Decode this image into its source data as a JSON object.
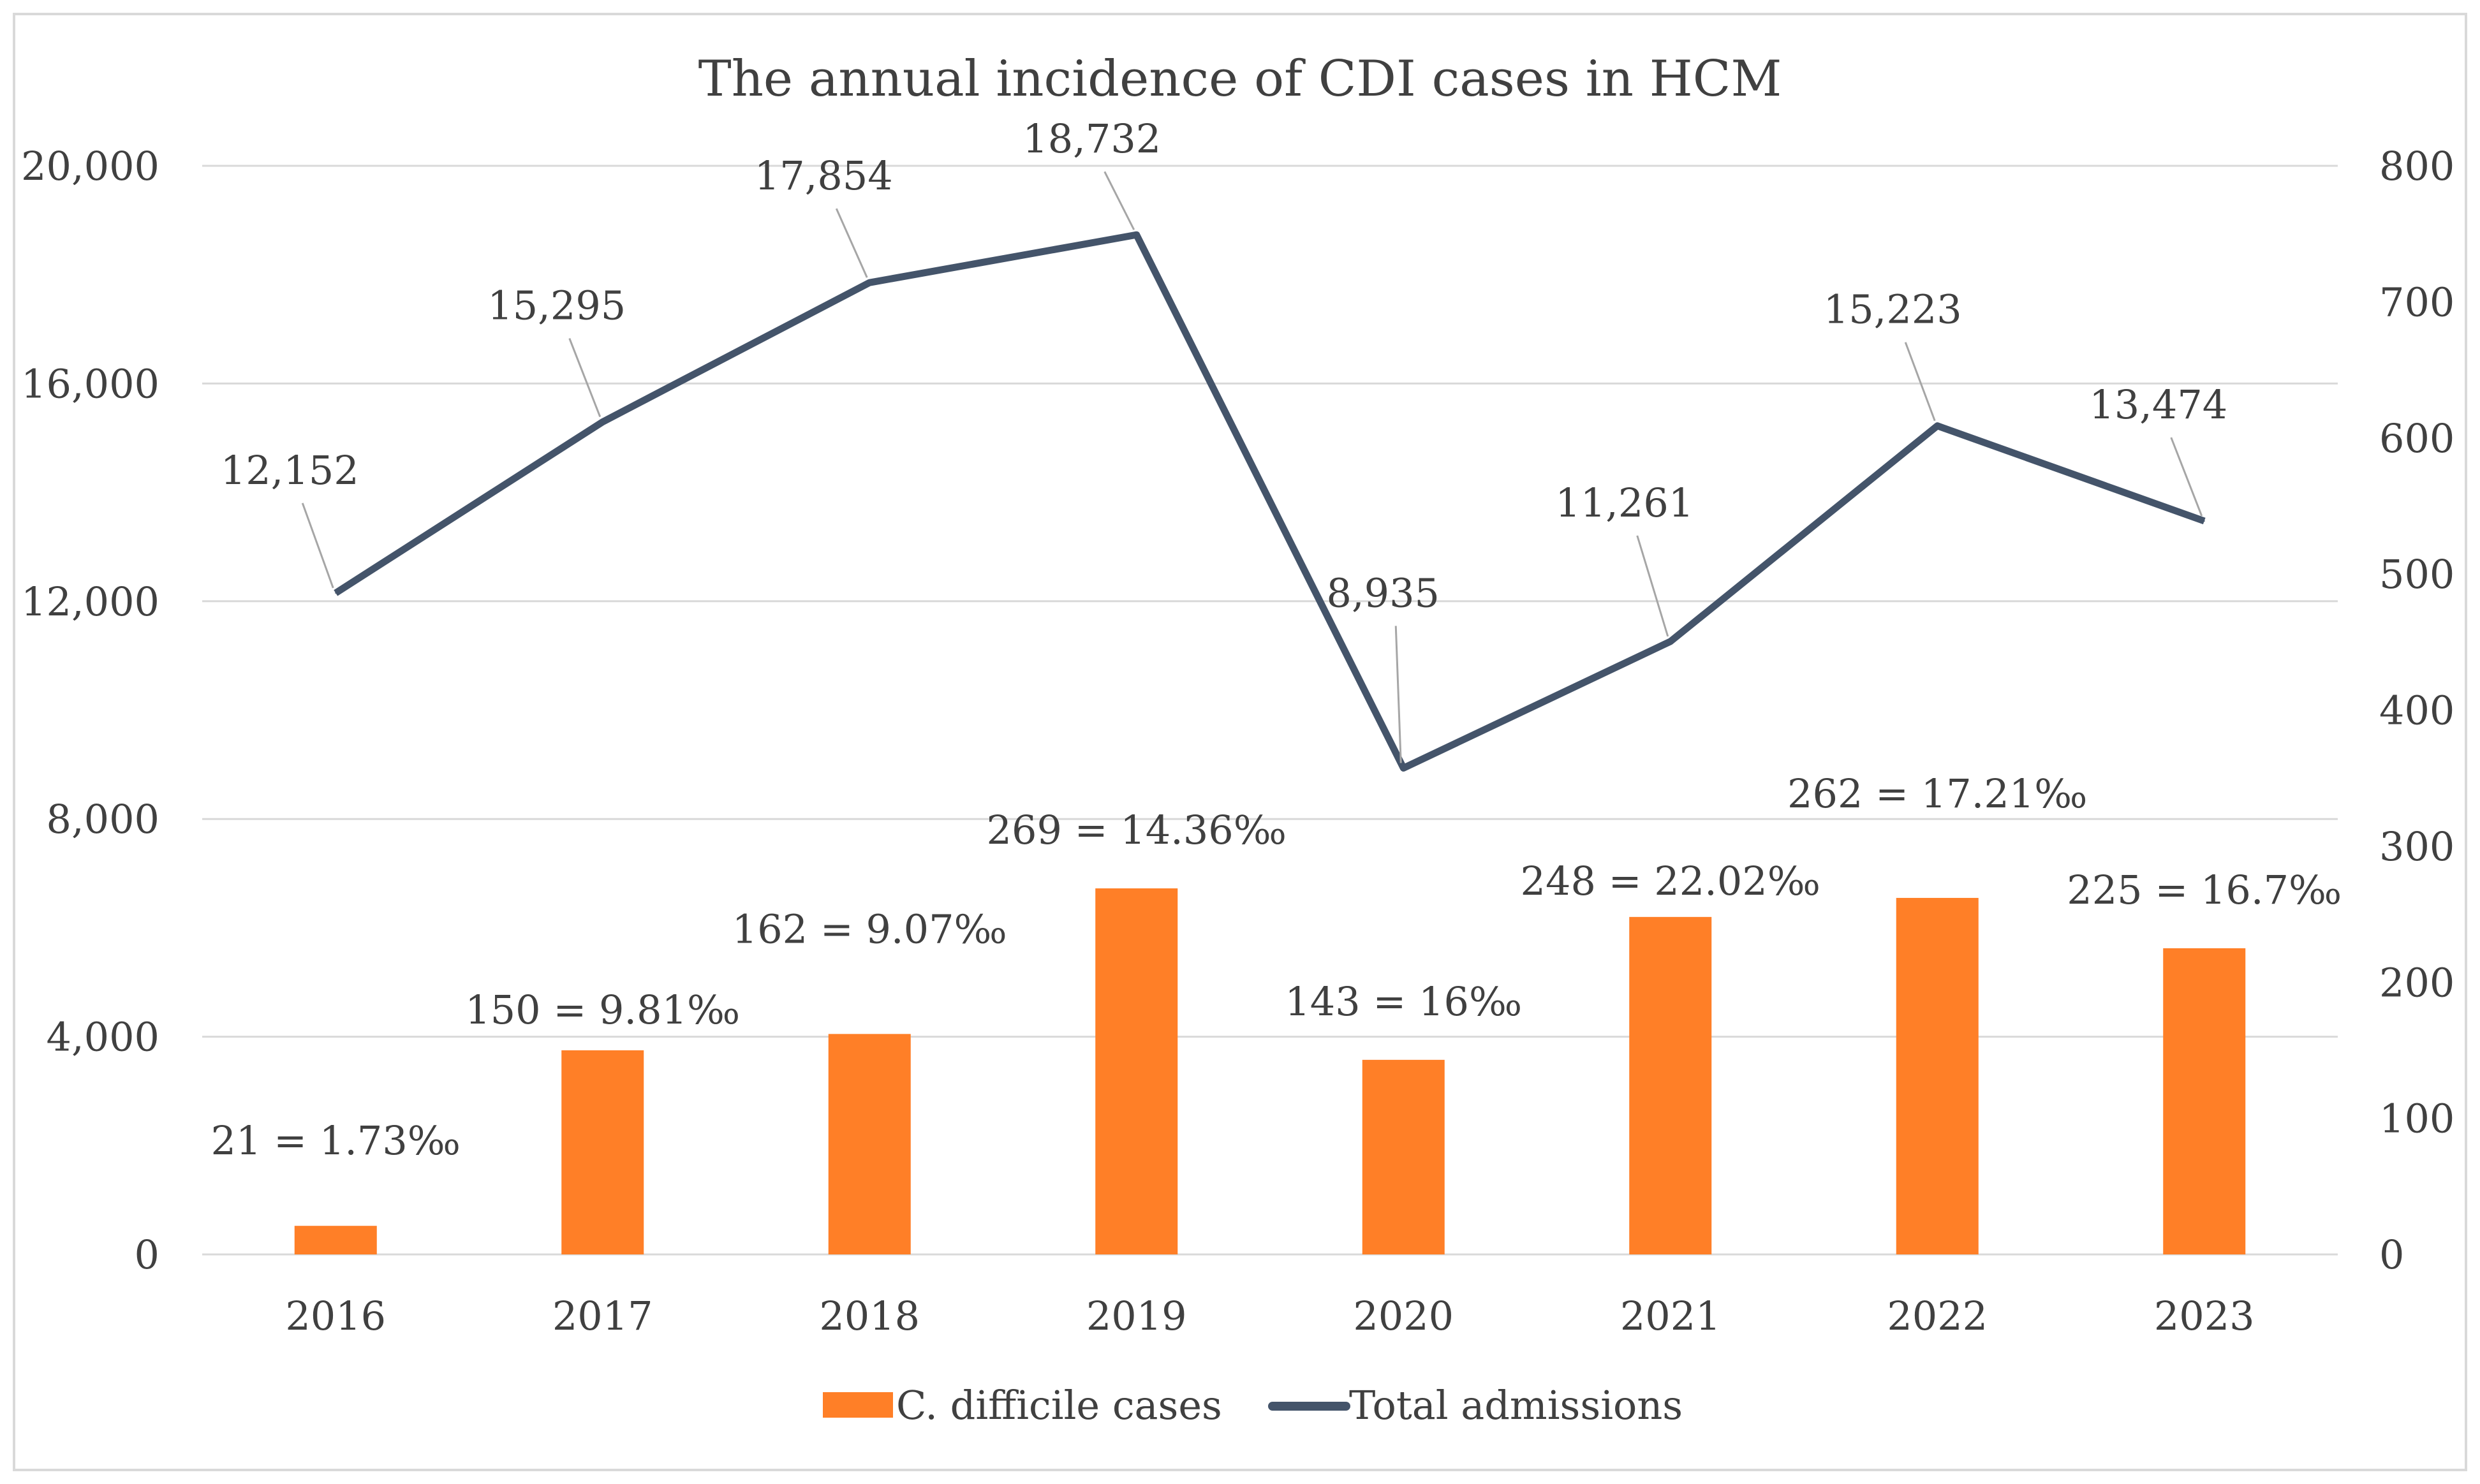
{
  "chart_data": {
    "type": "bar+line",
    "title": "The annual incidence  of CDI cases in HCM",
    "categories": [
      "2016",
      "2017",
      "2018",
      "2019",
      "2020",
      "2021",
      "2022",
      "2023"
    ],
    "series": [
      {
        "name": "C. difficile cases",
        "type": "bar",
        "axis": "right",
        "color": "#FF7F27",
        "values": [
          21,
          150,
          162,
          269,
          143,
          248,
          262,
          225
        ],
        "labels": [
          "21 = 1.73‰",
          "150 = 9.81‰",
          "162 = 9.07‰",
          "269 = 14.36‰",
          "143 = 16‰",
          "248 = 22.02‰",
          "262 = 17.21‰",
          "225 = 16.7‰"
        ]
      },
      {
        "name": "Total admissions",
        "type": "line",
        "axis": "left",
        "color": "#44546A",
        "values": [
          12152,
          15295,
          17854,
          18732,
          8935,
          11261,
          15223,
          13474
        ],
        "labels": [
          "12,152",
          "15,295",
          "17,854",
          "18,732",
          "8,935",
          "11,261",
          "15,223",
          "13,474"
        ]
      }
    ],
    "left_axis": {
      "range": [
        0,
        20000
      ],
      "ticks": [
        "0",
        "4,000",
        "8,000",
        "12,000",
        "16,000",
        "20,000"
      ]
    },
    "right_axis": {
      "range": [
        0,
        800
      ],
      "ticks": [
        "0",
        "100",
        "200",
        "300",
        "400",
        "500",
        "600",
        "700",
        "800"
      ]
    },
    "grid": true,
    "legend_position": "bottom"
  }
}
